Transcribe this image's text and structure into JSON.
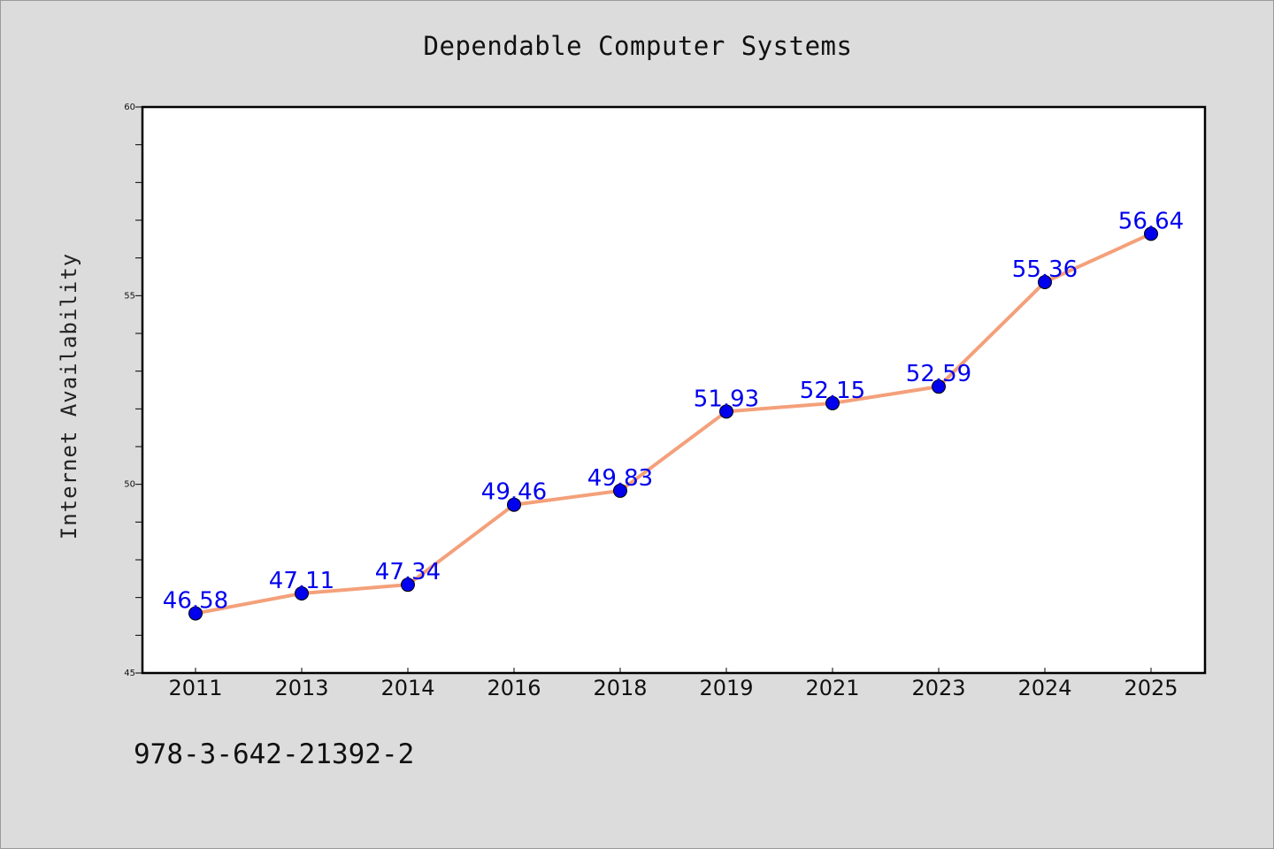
{
  "chart_data": {
    "type": "line",
    "title": "Dependable Computer Systems",
    "xlabel": "",
    "ylabel": "Internet Availability",
    "categories": [
      "2011",
      "2013",
      "2014",
      "2016",
      "2018",
      "2019",
      "2021",
      "2023",
      "2024",
      "2025"
    ],
    "series": [
      {
        "values": [
          46.58,
          47.11,
          47.34,
          49.46,
          49.83,
          51.93,
          52.15,
          52.59,
          55.36,
          56.64
        ],
        "data_labels": [
          "46.58",
          "47.11",
          "47.34",
          "49.46",
          "49.83",
          "51.93",
          "52.15",
          "52.59",
          "55.36",
          "56.64"
        ],
        "line_color": "#f4a07a",
        "marker_color": "#0000ee"
      }
    ],
    "ylim": [
      45,
      60
    ],
    "yticks": [
      "45",
      "50",
      "55",
      "60"
    ],
    "grid": false,
    "label_color": "#0000ee"
  },
  "footer_text": "978-3-642-21392-2"
}
